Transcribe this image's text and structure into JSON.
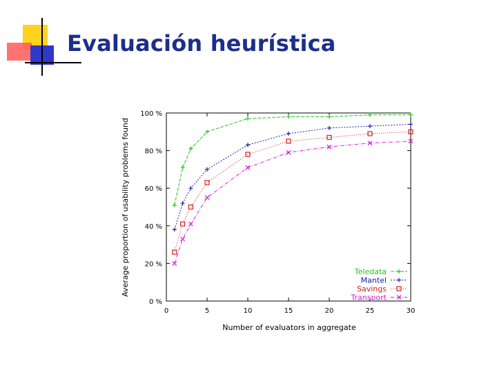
{
  "slide": {
    "title": "Evaluación heurística"
  },
  "chart_data": {
    "type": "line",
    "xlabel": "Number of evaluators in aggregate",
    "ylabel": "Average proportion of usability problems found",
    "x_ticks": [
      "0",
      "5",
      "10",
      "15",
      "20",
      "25",
      "30"
    ],
    "y_ticks": [
      "0 %",
      "20 %",
      "40 %",
      "60 %",
      "80 %",
      "100 %"
    ],
    "xlim": [
      0,
      30
    ],
    "ylim": [
      0,
      100
    ],
    "grid": false,
    "legend_position": "bottom-right",
    "x": [
      1,
      2,
      3,
      5,
      10,
      15,
      20,
      25,
      30
    ],
    "series": [
      {
        "name": "Teledata",
        "color": "#22c422",
        "marker": "plus",
        "values": [
          51,
          71,
          81,
          90,
          97,
          98,
          98,
          99,
          99
        ]
      },
      {
        "name": "Mantel",
        "color": "#1a1aaa",
        "marker": "plus",
        "values": [
          38,
          52,
          60,
          70,
          83,
          89,
          92,
          93,
          94
        ]
      },
      {
        "name": "Savings",
        "color": "#d02020",
        "marker": "square",
        "values": [
          26,
          41,
          50,
          63,
          78,
          85,
          87,
          89,
          90
        ]
      },
      {
        "name": "Transport",
        "color": "#d81ad8",
        "marker": "x",
        "values": [
          20,
          33,
          41,
          55,
          71,
          79,
          82,
          84,
          85
        ]
      }
    ]
  }
}
